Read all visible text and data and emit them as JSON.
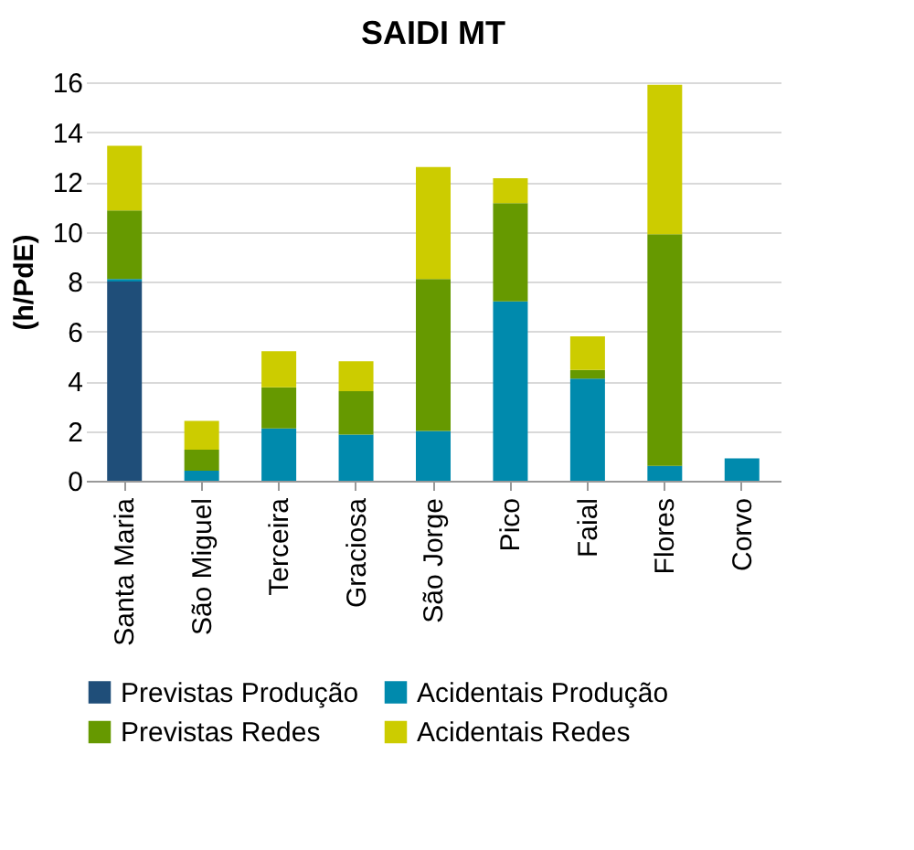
{
  "chart_data": {
    "type": "bar",
    "title": "SAIDI MT",
    "ylabel": "(h/PdE)",
    "stacked": true,
    "categories": [
      "Santa Maria",
      "São Miguel",
      "Terceira",
      "Graciosa",
      "São Jorge",
      "Pico",
      "Faial",
      "Flores",
      "Corvo"
    ],
    "series": [
      {
        "name": "Previstas Produção",
        "color": "#1f4e79",
        "values": [
          8.0,
          0,
          0,
          0,
          0,
          0,
          0,
          0,
          0
        ]
      },
      {
        "name": "Acidentais Produção",
        "color": "#008aad",
        "values": [
          0.1,
          0.4,
          2.1,
          1.85,
          2.0,
          7.2,
          4.1,
          0.6,
          0.9
        ]
      },
      {
        "name": "Previstas Redes",
        "color": "#669900",
        "values": [
          2.75,
          0.85,
          1.65,
          1.75,
          6.1,
          3.95,
          0.35,
          9.3,
          0
        ]
      },
      {
        "name": "Acidentais Redes",
        "color": "#cccc00",
        "values": [
          2.6,
          1.15,
          1.45,
          1.2,
          4.5,
          1.0,
          1.35,
          6.0,
          0
        ]
      }
    ],
    "ylim": [
      0,
      16
    ],
    "yticks": [
      0,
      2,
      4,
      6,
      8,
      10,
      12,
      14,
      16
    ],
    "grid": "y",
    "legend": "bottom"
  }
}
